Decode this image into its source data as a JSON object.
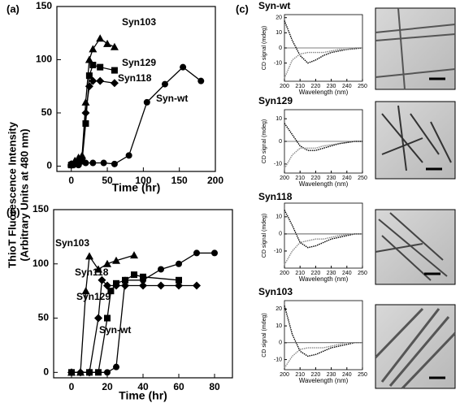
{
  "figure": {
    "ylabel": [
      "ThioT Fluorescence Intensity",
      "(Arbitrary Units at 480 nm)"
    ],
    "panel_c": "(c)"
  },
  "chart_data": [
    {
      "type": "line",
      "panel": "(a)",
      "xlabel": "Time (hr)",
      "xlim": [
        -20,
        200
      ],
      "xticks": [
        0,
        50,
        100,
        150,
        200
      ],
      "ylim": [
        -5,
        150
      ],
      "yticks": [
        0,
        50,
        100,
        150
      ],
      "annotations": [
        "Syn103",
        "Syn129",
        "Syn118",
        "Syn-wt"
      ],
      "series": [
        {
          "marker": "triangle",
          "color": "#000000",
          "x": [
            0,
            5,
            10,
            15,
            20,
            25,
            30,
            40,
            50,
            60
          ],
          "values": [
            2,
            5,
            8,
            10,
            60,
            100,
            110,
            120,
            115,
            112
          ]
        },
        {
          "marker": "square",
          "color": "#000000",
          "x": [
            0,
            5,
            10,
            15,
            20,
            25,
            30,
            40,
            60
          ],
          "values": [
            1,
            2,
            3,
            5,
            40,
            85,
            95,
            93,
            90
          ]
        },
        {
          "marker": "diamond",
          "color": "#000000",
          "x": [
            0,
            5,
            10,
            15,
            20,
            25,
            30,
            40,
            60
          ],
          "values": [
            1,
            2,
            3,
            5,
            50,
            75,
            80,
            80,
            78
          ]
        },
        {
          "marker": "circle",
          "color": "#000000",
          "x": [
            0,
            10,
            20,
            30,
            45,
            60,
            80,
            105,
            130,
            155,
            180
          ],
          "values": [
            2,
            1,
            3,
            3,
            3,
            2,
            10,
            60,
            77,
            93,
            80
          ]
        }
      ]
    },
    {
      "type": "line",
      "panel": "(b)",
      "xlabel": "Time (hr)",
      "xlim": [
        -10,
        90
      ],
      "xticks": [
        0,
        20,
        40,
        60,
        80
      ],
      "ylim": [
        -5,
        150
      ],
      "yticks": [
        0,
        50,
        100,
        150
      ],
      "annotations": [
        "Syn103",
        "Syn118",
        "Syn129",
        "Syn-wt"
      ],
      "series": [
        {
          "marker": "triangle",
          "color": "#000000",
          "x": [
            0,
            5,
            8,
            10,
            15,
            20,
            25,
            35
          ],
          "values": [
            0,
            0,
            75,
            107,
            95,
            100,
            103,
            108
          ]
        },
        {
          "marker": "diamond",
          "color": "#000000",
          "x": [
            0,
            5,
            10,
            15,
            17,
            20,
            25,
            30,
            40,
            50,
            60,
            70
          ],
          "values": [
            0,
            0,
            0,
            50,
            85,
            80,
            80,
            80,
            80,
            80,
            80,
            80
          ]
        },
        {
          "marker": "square",
          "color": "#000000",
          "x": [
            0,
            10,
            15,
            20,
            22,
            25,
            30,
            35,
            40,
            60
          ],
          "values": [
            0,
            0,
            0,
            50,
            75,
            82,
            85,
            90,
            88,
            85
          ]
        },
        {
          "marker": "circle",
          "color": "#000000",
          "x": [
            0,
            10,
            20,
            25,
            30,
            40,
            50,
            60,
            70,
            80
          ],
          "values": [
            0,
            0,
            0,
            5,
            85,
            85,
            95,
            100,
            110,
            110
          ]
        }
      ]
    },
    {
      "type": "cd",
      "title": "Syn-wt",
      "xlabel": "Wavelength (nm)",
      "ylabel": "CD signal (mdeg)",
      "xlim": [
        200,
        250
      ],
      "xticks": [
        200,
        210,
        220,
        230,
        240,
        250
      ],
      "ylim": [
        -22,
        22
      ],
      "yticks": [
        -10,
        0,
        10,
        20
      ],
      "x": [
        200,
        205,
        210,
        215,
        220,
        225,
        230,
        235,
        240,
        245,
        250
      ],
      "series": [
        {
          "color": "#000000",
          "values": [
            18,
            5,
            -5,
            -10,
            -8,
            -5,
            -3,
            -2,
            -1,
            -0.5,
            0
          ]
        },
        {
          "color": "#888888",
          "values": [
            -20,
            -8,
            -4,
            -3,
            -3,
            -3,
            -2,
            -1,
            -1,
            0,
            0
          ]
        }
      ]
    },
    {
      "type": "cd",
      "title": "Syn129",
      "xlabel": "Wavelength (nm)",
      "ylabel": "CD signal (mdeg)",
      "xlim": [
        200,
        250
      ],
      "xticks": [
        200,
        210,
        220,
        230,
        240,
        250
      ],
      "ylim": [
        -14,
        14
      ],
      "yticks": [
        -10,
        0,
        10
      ],
      "x": [
        200,
        205,
        210,
        215,
        220,
        225,
        230,
        235,
        240,
        245,
        250
      ],
      "series": [
        {
          "color": "#000000",
          "values": [
            8,
            3,
            -2,
            -4,
            -4,
            -3,
            -2,
            -1,
            -0.5,
            0,
            0
          ]
        },
        {
          "color": "#888888",
          "values": [
            -12,
            -6,
            -3,
            -3,
            -3,
            -2,
            -1.5,
            -1,
            -0.5,
            0,
            0
          ]
        }
      ]
    },
    {
      "type": "cd",
      "title": "Syn118",
      "xlabel": "Wavelength (nm)",
      "ylabel": "CD signal (mdeg)",
      "xlim": [
        200,
        250
      ],
      "xticks": [
        200,
        210,
        220,
        230,
        240,
        250
      ],
      "ylim": [
        -20,
        18
      ],
      "yticks": [
        -10,
        0,
        10
      ],
      "x": [
        200,
        205,
        210,
        215,
        220,
        225,
        230,
        235,
        240,
        245,
        250
      ],
      "series": [
        {
          "color": "#000000",
          "values": [
            14,
            5,
            -5,
            -8,
            -7,
            -5,
            -3,
            -2,
            -1,
            0,
            0
          ]
        },
        {
          "color": "#888888",
          "values": [
            -18,
            -10,
            -5,
            -4,
            -3,
            -3,
            -2,
            -1,
            -0.5,
            0,
            0
          ]
        }
      ]
    },
    {
      "type": "cd",
      "title": "Syn103",
      "xlabel": "Wavelength (nm)",
      "ylabel": "CD signal (mdeg)",
      "xlim": [
        200,
        250
      ],
      "xticks": [
        200,
        210,
        220,
        230,
        240,
        250
      ],
      "ylim": [
        -16,
        25
      ],
      "yticks": [
        -10,
        0,
        10,
        20
      ],
      "x": [
        200,
        205,
        210,
        215,
        220,
        225,
        230,
        235,
        240,
        245,
        250
      ],
      "series": [
        {
          "color": "#000000",
          "values": [
            22,
            5,
            -5,
            -8,
            -7,
            -5,
            -3,
            -2,
            -1,
            0,
            0
          ]
        },
        {
          "color": "#888888",
          "values": [
            -15,
            -8,
            -4,
            -3,
            -3,
            -3,
            -2,
            -1,
            0,
            0,
            0
          ]
        }
      ]
    }
  ]
}
